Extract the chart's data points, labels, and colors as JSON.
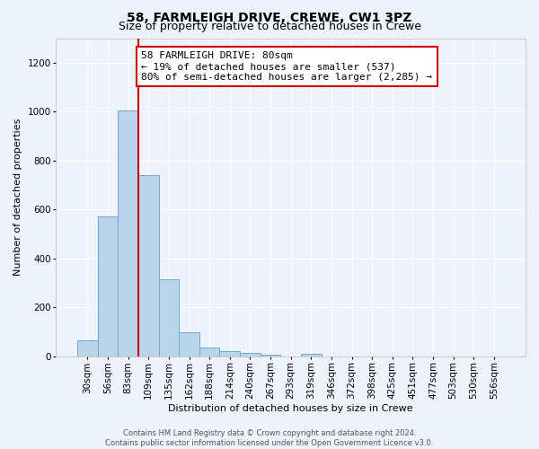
{
  "title": "58, FARMLEIGH DRIVE, CREWE, CW1 3PZ",
  "subtitle": "Size of property relative to detached houses in Crewe",
  "xlabel": "Distribution of detached houses by size in Crewe",
  "ylabel": "Number of detached properties",
  "footer_line1": "Contains HM Land Registry data © Crown copyright and database right 2024.",
  "footer_line2": "Contains public sector information licensed under the Open Government Licence v3.0.",
  "categories": [
    "30sqm",
    "56sqm",
    "83sqm",
    "109sqm",
    "135sqm",
    "162sqm",
    "188sqm",
    "214sqm",
    "240sqm",
    "267sqm",
    "293sqm",
    "319sqm",
    "346sqm",
    "372sqm",
    "398sqm",
    "425sqm",
    "451sqm",
    "477sqm",
    "503sqm",
    "530sqm",
    "556sqm"
  ],
  "bar_values": [
    65,
    570,
    1005,
    740,
    315,
    100,
    35,
    22,
    13,
    8,
    0,
    10,
    0,
    0,
    0,
    0,
    0,
    0,
    0,
    0,
    0
  ],
  "bar_color": "#bad4ea",
  "bar_edge_color": "#6aaad4",
  "ylim": [
    0,
    1300
  ],
  "yticks": [
    0,
    200,
    400,
    600,
    800,
    1000,
    1200
  ],
  "property_line_bar_index": 2,
  "property_line_color": "#cc0000",
  "annotation_line0": "58 FARMLEIGH DRIVE: 80sqm",
  "annotation_line1": "← 19% of detached houses are smaller (537)",
  "annotation_line2": "80% of semi-detached houses are larger (2,285) →",
  "annotation_box_color": "#cc0000",
  "bg_color": "#eef2fa",
  "grid_color": "#ffffff",
  "title_fontsize": 10,
  "subtitle_fontsize": 9,
  "axis_label_fontsize": 8,
  "tick_fontsize": 7.5,
  "footer_fontsize": 6,
  "annotation_fontsize": 8
}
